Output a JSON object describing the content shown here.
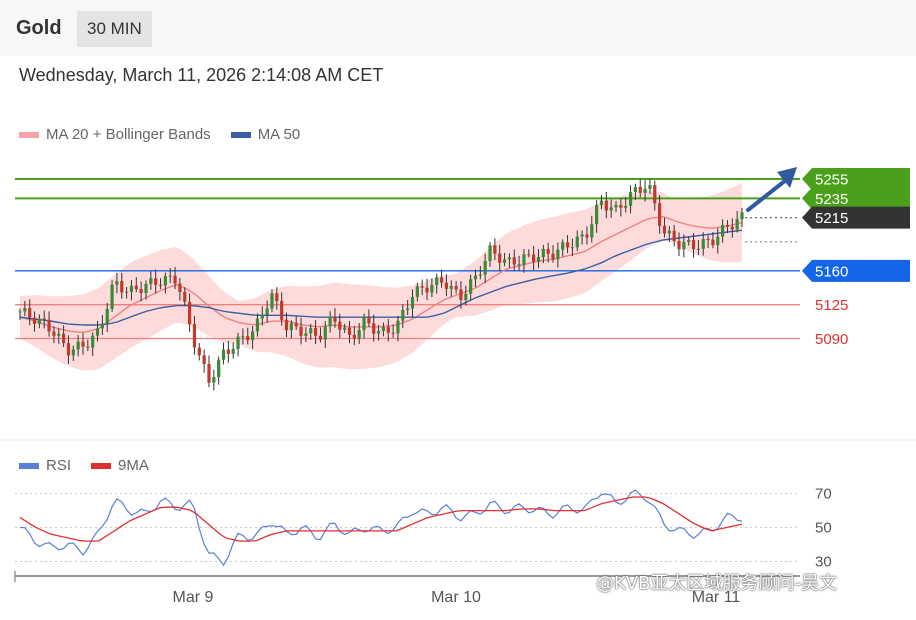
{
  "header": {
    "title": "Gold",
    "timeframe": "30 MIN"
  },
  "datetime": "Wednesday, March 11, 2026 2:14:08 AM CET",
  "colors": {
    "ma20": "#f08080",
    "ma50": "#3b5fa6",
    "bands": "#fdd5d5",
    "green": "#4aa01a",
    "blue": "#1565e8",
    "red": "#e03030",
    "rsi": "#5b7fd6",
    "rsi_ma": "#e03030",
    "dark": "#333333"
  },
  "legend_top": [
    {
      "label": "MA 20 + Bollinger Bands",
      "color": "#f08080"
    },
    {
      "label": "MA 50",
      "color": "#3b5fa6"
    }
  ],
  "legend_bottom": [
    {
      "label": "RSI",
      "color": "#5b7fd6"
    },
    {
      "label": "9MA",
      "color": "#e03030"
    }
  ],
  "watermark": "@KVB亚太区域服务顾问-吴文",
  "chart_data": [
    {
      "type": "candlestick",
      "title": "Gold",
      "price_range": [
        4985,
        5285
      ],
      "x_ticks": [
        "Mar 9",
        "Mar 10",
        "Mar 11"
      ],
      "levels": [
        {
          "value": 5255,
          "label": "5255",
          "style": "resistance-green"
        },
        {
          "value": 5235,
          "label": "5235",
          "style": "resistance-green"
        },
        {
          "value": 5215,
          "label": "5215",
          "style": "current-price"
        },
        {
          "value": 5160,
          "label": "5160",
          "style": "support-blue"
        },
        {
          "value": 5125,
          "label": "5125",
          "style": "support-red"
        },
        {
          "value": 5090,
          "label": "5090",
          "style": "support-red"
        }
      ],
      "close_path": [
        5118,
        5110,
        5100,
        5078,
        5082,
        5096,
        5148,
        5138,
        5145,
        5150,
        5152,
        5092,
        5045,
        5075,
        5088,
        5100,
        5136,
        5102,
        5098,
        5092,
        5112,
        5090,
        5108,
        5095,
        5102,
        5136,
        5144,
        5150,
        5132,
        5152,
        5182,
        5168,
        5172,
        5176,
        5178,
        5188,
        5195,
        5232,
        5222,
        5240,
        5250,
        5200,
        5188,
        5186,
        5190,
        5205,
        5215
      ],
      "ma20": [
        5112,
        5108,
        5102,
        5098,
        5096,
        5100,
        5112,
        5124,
        5132,
        5140,
        5146,
        5138,
        5124,
        5112,
        5106,
        5104,
        5108,
        5108,
        5104,
        5102,
        5104,
        5102,
        5102,
        5102,
        5104,
        5110,
        5120,
        5130,
        5136,
        5142,
        5152,
        5162,
        5166,
        5170,
        5172,
        5176,
        5180,
        5190,
        5198,
        5206,
        5214,
        5216,
        5210,
        5206,
        5204,
        5206,
        5210
      ],
      "ma50": [
        5112,
        5110,
        5108,
        5105,
        5104,
        5104,
        5106,
        5112,
        5118,
        5122,
        5124,
        5124,
        5122,
        5118,
        5116,
        5114,
        5114,
        5114,
        5113,
        5112,
        5112,
        5112,
        5112,
        5112,
        5112,
        5112,
        5112,
        5116,
        5124,
        5132,
        5138,
        5144,
        5148,
        5152,
        5155,
        5158,
        5162,
        5168,
        5176,
        5182,
        5188,
        5192,
        5194,
        5196,
        5198,
        5200,
        5202
      ]
    },
    {
      "type": "line",
      "title": "RSI",
      "ylim": [
        25,
        78
      ],
      "y_ticks": [
        70,
        50,
        30
      ],
      "series": [
        {
          "name": "RSI",
          "values": [
            50,
            42,
            38,
            40,
            36,
            46,
            66,
            60,
            58,
            66,
            62,
            64,
            34,
            30,
            46,
            44,
            54,
            46,
            50,
            44,
            52,
            46,
            50,
            48,
            50,
            60,
            58,
            62,
            56,
            58,
            64,
            60,
            62,
            60,
            58,
            62,
            60,
            72,
            64,
            70,
            68,
            52,
            48,
            46,
            48,
            56,
            56
          ]
        },
        {
          "name": "9MA",
          "values": [
            56,
            50,
            46,
            44,
            42,
            42,
            48,
            54,
            58,
            62,
            62,
            60,
            52,
            44,
            42,
            42,
            46,
            48,
            48,
            48,
            48,
            48,
            48,
            48,
            48,
            52,
            56,
            58,
            60,
            60,
            60,
            60,
            61,
            61,
            60,
            60,
            60,
            64,
            66,
            68,
            68,
            64,
            58,
            52,
            48,
            50,
            52
          ]
        }
      ]
    }
  ]
}
